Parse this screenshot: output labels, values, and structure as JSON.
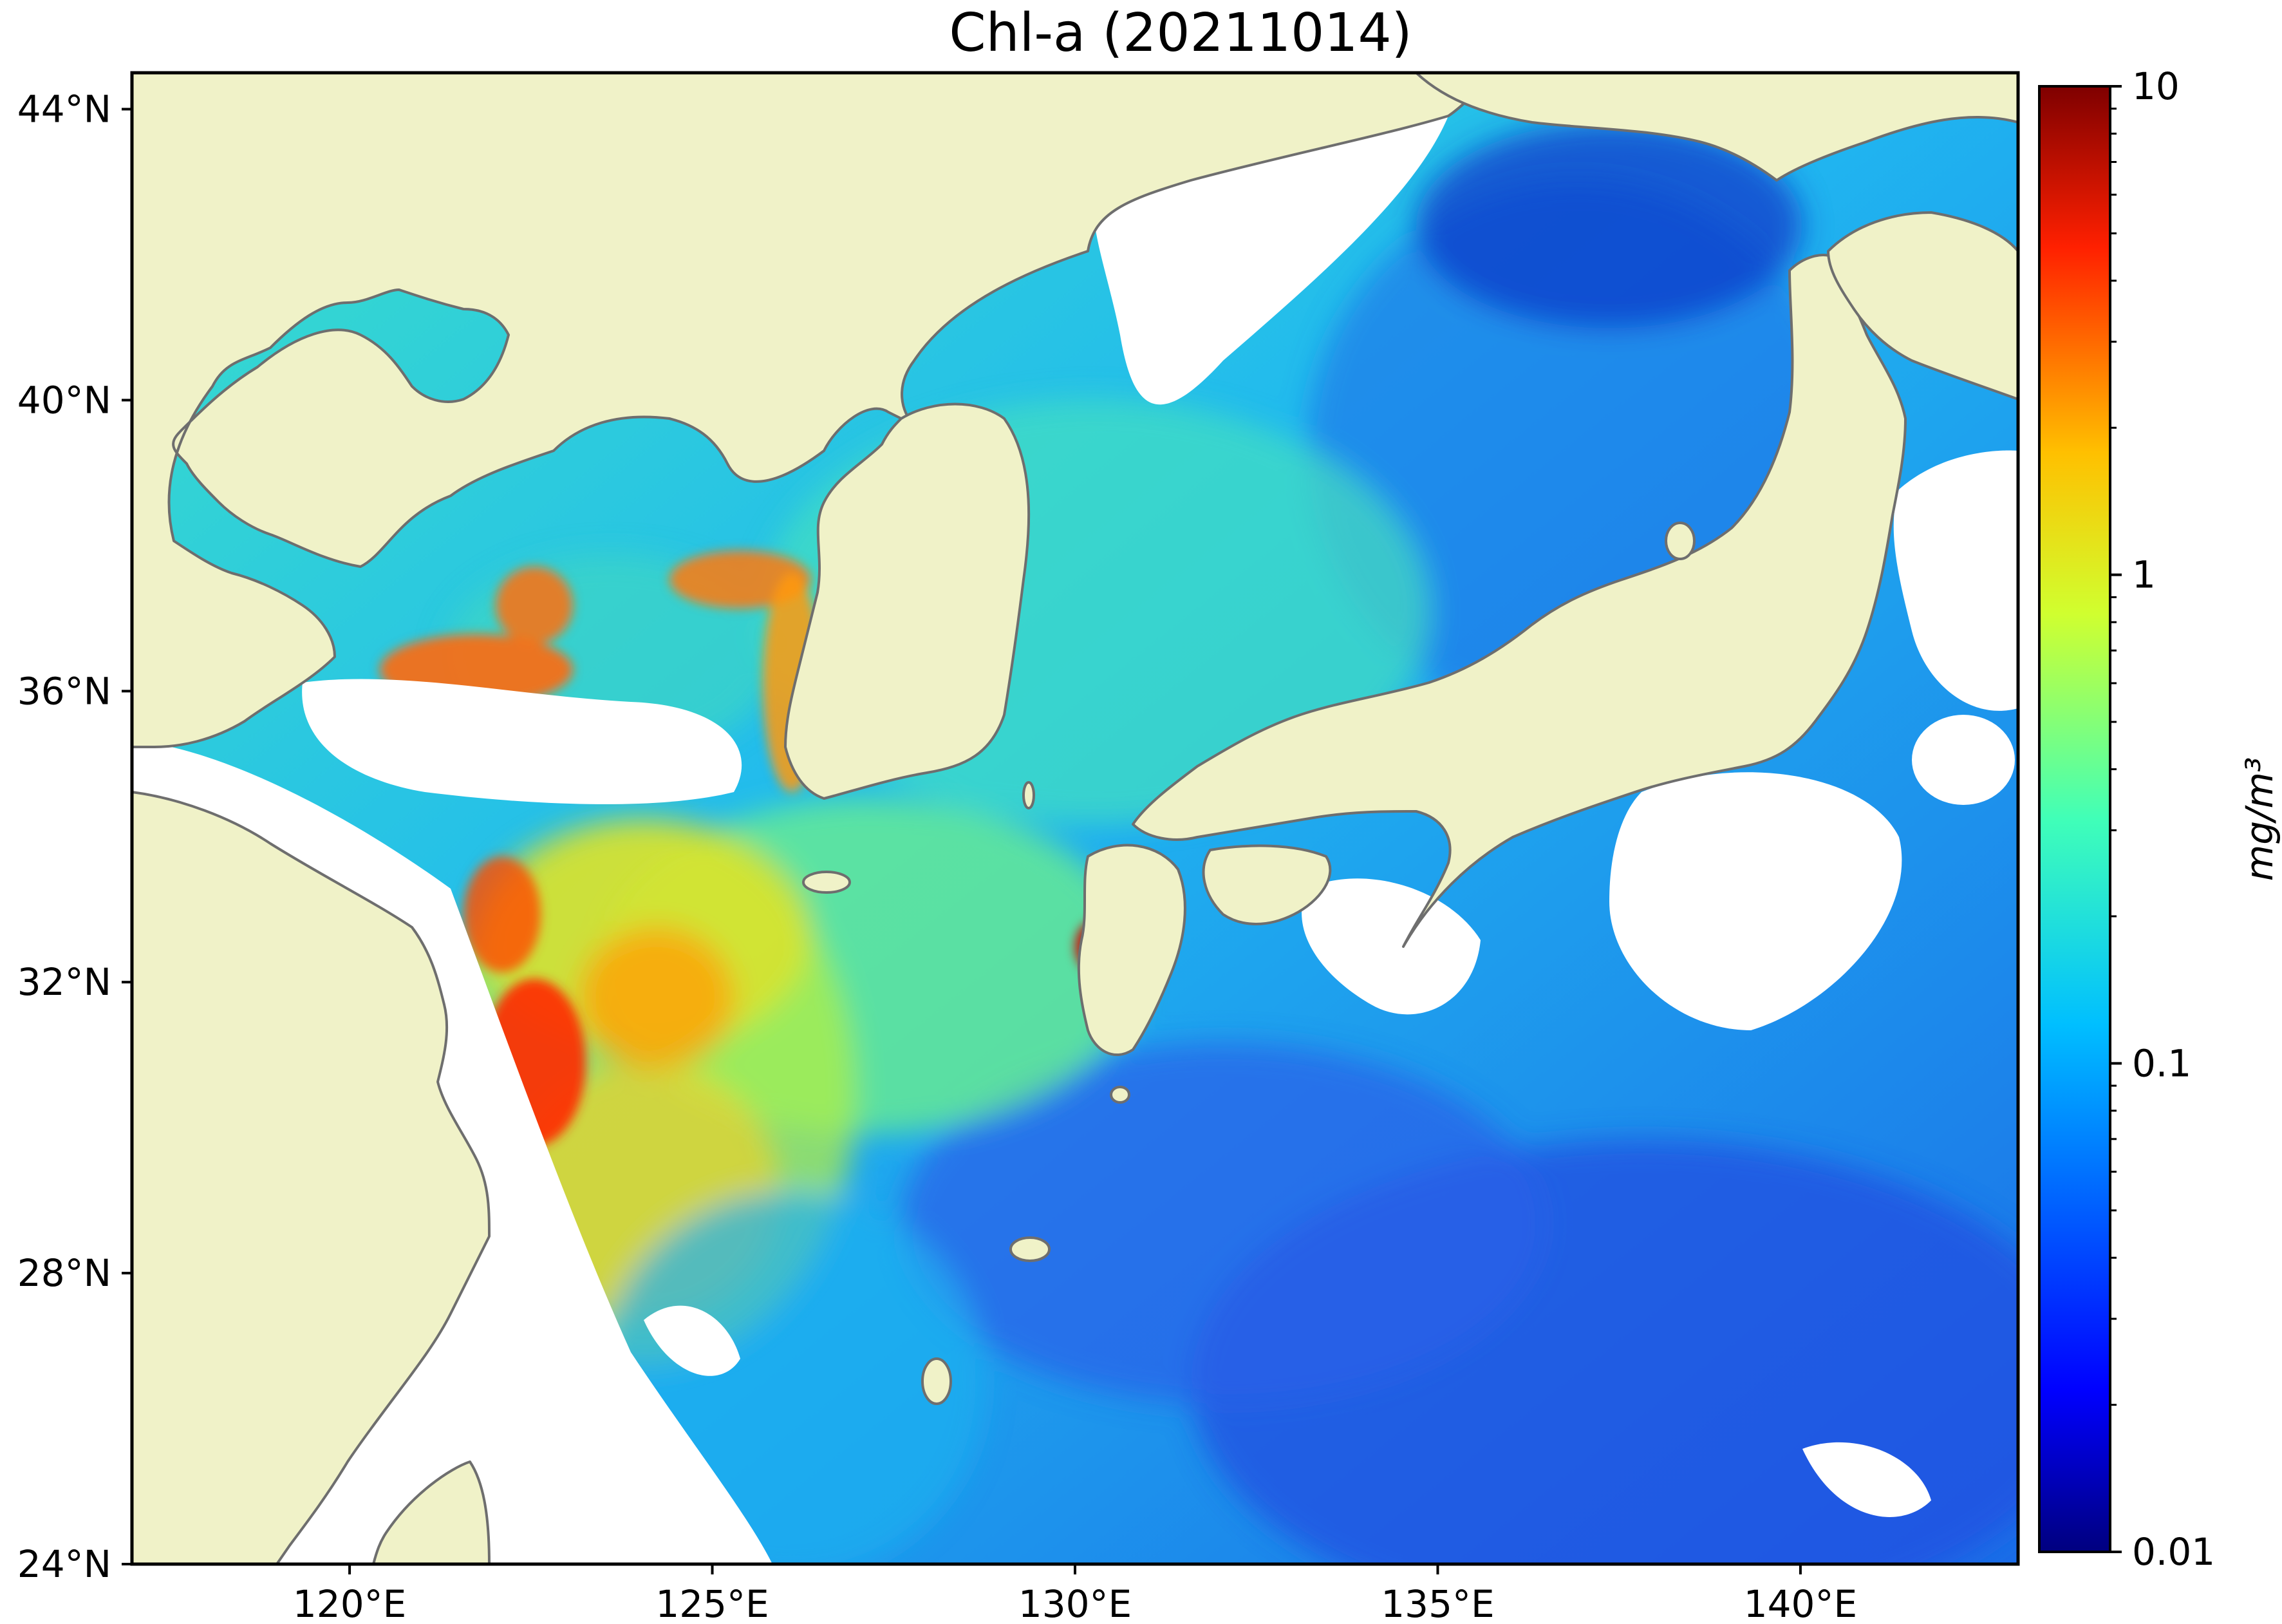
{
  "title": "Chl-a (20211014)",
  "map": {
    "land_color": "#F0F2C8",
    "coast_color": "#6e6e6e",
    "no_data_color": "#FFFFFF",
    "lon_range": [
      117,
      143
    ],
    "lat_range": [
      24,
      44.5
    ],
    "x_ticks": [
      {
        "value": 120,
        "label": "120°E"
      },
      {
        "value": 125,
        "label": "125°E"
      },
      {
        "value": 130,
        "label": "130°E"
      },
      {
        "value": 135,
        "label": "135°E"
      },
      {
        "value": 140,
        "label": "140°E"
      }
    ],
    "y_ticks": [
      {
        "value": 24,
        "label": "24°N"
      },
      {
        "value": 28,
        "label": "28°N"
      },
      {
        "value": 32,
        "label": "32°N"
      },
      {
        "value": 36,
        "label": "36°N"
      },
      {
        "value": 40,
        "label": "40°N"
      },
      {
        "value": 44,
        "label": "44°N"
      }
    ]
  },
  "colorbar": {
    "label": "mg/m³",
    "scale": "log",
    "range": [
      0.01,
      10
    ],
    "colormap": "jet",
    "major_ticks": [
      {
        "value": 0.01,
        "label": "0.01"
      },
      {
        "value": 0.1,
        "label": "0.1"
      },
      {
        "value": 1,
        "label": "1"
      },
      {
        "value": 10,
        "label": "10"
      }
    ]
  }
}
